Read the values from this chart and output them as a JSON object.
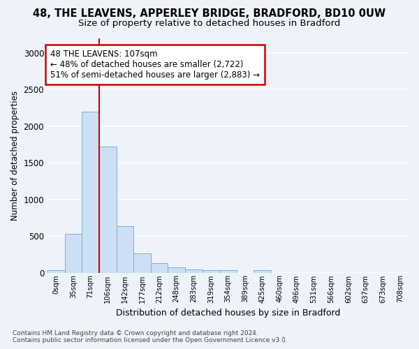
{
  "title_line1": "48, THE LEAVENS, APPERLEY BRIDGE, BRADFORD, BD10 0UW",
  "title_line2": "Size of property relative to detached houses in Bradford",
  "xlabel": "Distribution of detached houses by size in Bradford",
  "ylabel": "Number of detached properties",
  "bin_labels": [
    "0sqm",
    "35sqm",
    "71sqm",
    "106sqm",
    "142sqm",
    "177sqm",
    "212sqm",
    "248sqm",
    "283sqm",
    "319sqm",
    "354sqm",
    "389sqm",
    "425sqm",
    "460sqm",
    "496sqm",
    "531sqm",
    "566sqm",
    "602sqm",
    "637sqm",
    "673sqm",
    "708sqm"
  ],
  "bar_values": [
    30,
    525,
    2195,
    1720,
    635,
    265,
    130,
    70,
    45,
    38,
    32,
    0,
    30,
    0,
    0,
    0,
    0,
    0,
    0,
    0,
    0
  ],
  "bar_color": "#cddff5",
  "bar_edge_color": "#7bafd4",
  "vline_index": 3,
  "vline_color": "#cc0000",
  "annotation_text": "48 THE LEAVENS: 107sqm\n← 48% of detached houses are smaller (2,722)\n51% of semi-detached houses are larger (2,883) →",
  "annotation_box_color": "#ffffff",
  "annotation_box_edge_color": "#cc0000",
  "ylim": [
    0,
    3200
  ],
  "yticks": [
    0,
    500,
    1000,
    1500,
    2000,
    2500,
    3000
  ],
  "footnote": "Contains HM Land Registry data © Crown copyright and database right 2024.\nContains public sector information licensed under the Open Government Licence v3.0.",
  "bg_color": "#eef2f9",
  "grid_color": "#ffffff",
  "title_fontsize": 10.5,
  "subtitle_fontsize": 9.5,
  "annotation_fontsize": 8.5
}
